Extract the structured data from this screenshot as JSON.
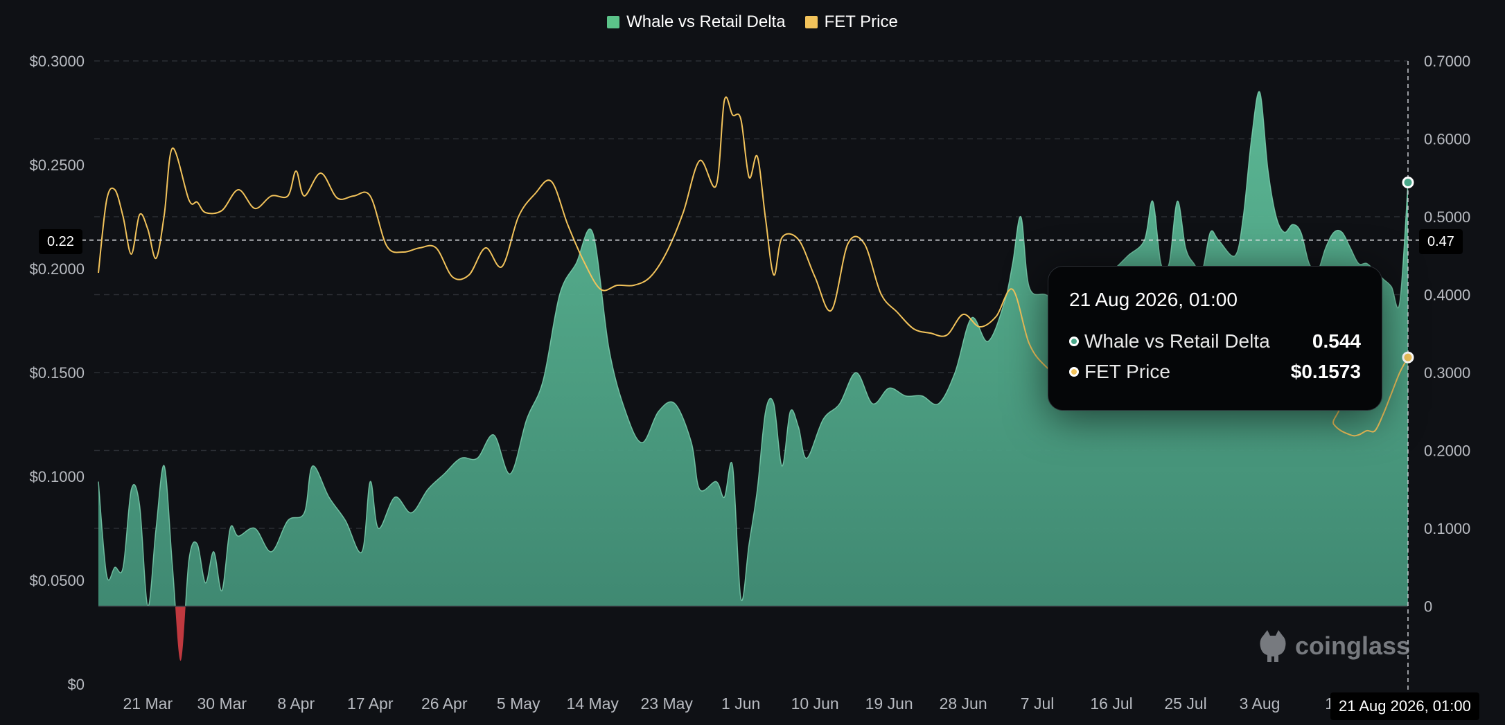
{
  "legend": [
    {
      "name": "Whale vs Retail Delta",
      "color": "#5bc389"
    },
    {
      "name": "FET Price",
      "color": "#f2c35b"
    }
  ],
  "tooltip": {
    "title": "21 Aug 2026, 01:00",
    "rows": [
      {
        "label": "Whale vs Retail Delta",
        "value": "0.544",
        "dot_color": "#4aa88a"
      },
      {
        "label": "FET Price",
        "value": "$0.1573",
        "dot_color": "#f2c35b"
      }
    ]
  },
  "crosshair": {
    "left_label": "0.22",
    "right_label": "0.47",
    "x_label": "21 Aug 2026, 01:00"
  },
  "watermark": "coinglass",
  "chart_data": {
    "type": "area",
    "x_tick_labels": [
      "21 Mar",
      "30 Mar",
      "8 Apr",
      "17 Apr",
      "26 Apr",
      "5 May",
      "14 May",
      "23 May",
      "1 Jun",
      "10 Jun",
      "19 Jun",
      "28 Jun",
      "7 Jul",
      "16 Jul",
      "25 Jul",
      "3 Aug",
      "12",
      "21 Aug 2026, 01:00"
    ],
    "x_range": [
      "2026-03-15",
      "2026-08-21"
    ],
    "y_left": {
      "ticks": [
        "$0.3000",
        "$0.2500",
        "$0.2000",
        "$0.1500",
        "$0.1000",
        "$0.0500",
        "$0"
      ],
      "lim": [
        0,
        0.3
      ]
    },
    "y_right": {
      "ticks": [
        "0.7000",
        "0.6000",
        "0.5000",
        "0.4000",
        "0.3000",
        "0.2000",
        "0.1000",
        "0"
      ],
      "lim": [
        -0.1,
        0.7
      ]
    },
    "grid": true,
    "legend_position": "top-center",
    "series": [
      {
        "name": "Whale vs Retail Delta",
        "axis": "right",
        "color": "#5fbf9a",
        "negative_color": "#c0393f",
        "x": [
          "2026-03-15",
          "2026-03-16",
          "2026-03-17",
          "2026-03-18",
          "2026-03-19",
          "2026-03-20",
          "2026-03-21",
          "2026-03-22",
          "2026-03-23",
          "2026-03-24",
          "2026-03-25",
          "2026-03-26",
          "2026-03-27",
          "2026-03-28",
          "2026-03-29",
          "2026-03-30",
          "2026-03-31",
          "2026-04-01",
          "2026-04-03",
          "2026-04-05",
          "2026-04-07",
          "2026-04-09",
          "2026-04-10",
          "2026-04-12",
          "2026-04-14",
          "2026-04-16",
          "2026-04-17",
          "2026-04-18",
          "2026-04-20",
          "2026-04-22",
          "2026-04-24",
          "2026-04-26",
          "2026-04-28",
          "2026-04-30",
          "2026-05-02",
          "2026-05-04",
          "2026-05-06",
          "2026-05-08",
          "2026-05-10",
          "2026-05-12",
          "2026-05-14",
          "2026-05-16",
          "2026-05-18",
          "2026-05-20",
          "2026-05-22",
          "2026-05-24",
          "2026-05-26",
          "2026-05-27",
          "2026-05-29",
          "2026-05-30",
          "2026-05-31",
          "2026-06-01",
          "2026-06-02",
          "2026-06-03",
          "2026-06-04",
          "2026-06-05",
          "2026-06-06",
          "2026-06-07",
          "2026-06-08",
          "2026-06-09",
          "2026-06-11",
          "2026-06-13",
          "2026-06-15",
          "2026-06-17",
          "2026-06-19",
          "2026-06-21",
          "2026-06-23",
          "2026-06-25",
          "2026-06-27",
          "2026-06-29",
          "2026-07-01",
          "2026-07-03",
          "2026-07-04",
          "2026-07-05",
          "2026-07-06",
          "2026-07-08",
          "2026-07-10",
          "2026-07-12",
          "2026-07-14",
          "2026-07-16",
          "2026-07-18",
          "2026-07-20",
          "2026-07-21",
          "2026-07-22",
          "2026-07-23",
          "2026-07-24",
          "2026-07-25",
          "2026-07-26",
          "2026-07-27",
          "2026-07-28",
          "2026-07-29",
          "2026-07-31",
          "2026-08-01",
          "2026-08-02",
          "2026-08-03",
          "2026-08-04",
          "2026-08-05",
          "2026-08-06",
          "2026-08-07",
          "2026-08-08",
          "2026-08-09",
          "2026-08-10",
          "2026-08-11",
          "2026-08-12",
          "2026-08-13",
          "2026-08-14",
          "2026-08-15",
          "2026-08-16",
          "2026-08-17",
          "2026-08-18",
          "2026-08-19",
          "2026-08-20",
          "2026-08-21"
        ],
        "values": [
          0.16,
          0.04,
          0.05,
          0.05,
          0.15,
          0.13,
          0.0,
          0.1,
          0.18,
          0.05,
          -0.07,
          0.06,
          0.08,
          0.03,
          0.07,
          0.02,
          0.1,
          0.09,
          0.1,
          0.07,
          0.11,
          0.12,
          0.18,
          0.14,
          0.11,
          0.07,
          0.16,
          0.1,
          0.14,
          0.12,
          0.15,
          0.17,
          0.19,
          0.19,
          0.22,
          0.17,
          0.24,
          0.29,
          0.4,
          0.44,
          0.48,
          0.33,
          0.25,
          0.21,
          0.25,
          0.26,
          0.21,
          0.15,
          0.16,
          0.14,
          0.18,
          0.01,
          0.08,
          0.15,
          0.25,
          0.26,
          0.18,
          0.25,
          0.23,
          0.19,
          0.24,
          0.26,
          0.3,
          0.26,
          0.28,
          0.27,
          0.27,
          0.26,
          0.3,
          0.37,
          0.34,
          0.39,
          0.44,
          0.5,
          0.41,
          0.4,
          0.39,
          0.4,
          0.42,
          0.43,
          0.45,
          0.47,
          0.52,
          0.44,
          0.44,
          0.52,
          0.46,
          0.44,
          0.43,
          0.48,
          0.47,
          0.45,
          0.5,
          0.6,
          0.66,
          0.56,
          0.5,
          0.48,
          0.49,
          0.48,
          0.44,
          0.43,
          0.46,
          0.48,
          0.48,
          0.46,
          0.44,
          0.44,
          0.43,
          0.42,
          0.41,
          0.39,
          0.544
        ]
      },
      {
        "name": "FET Price",
        "axis": "left",
        "color": "#f2c35b",
        "x": [
          "2026-03-15",
          "2026-03-16",
          "2026-03-17",
          "2026-03-18",
          "2026-03-19",
          "2026-03-20",
          "2026-03-21",
          "2026-03-22",
          "2026-03-23",
          "2026-03-24",
          "2026-03-26",
          "2026-03-27",
          "2026-03-28",
          "2026-03-30",
          "2026-04-01",
          "2026-04-03",
          "2026-04-05",
          "2026-04-07",
          "2026-04-08",
          "2026-04-09",
          "2026-04-11",
          "2026-04-13",
          "2026-04-15",
          "2026-04-17",
          "2026-04-19",
          "2026-04-21",
          "2026-04-23",
          "2026-04-25",
          "2026-04-27",
          "2026-04-29",
          "2026-05-01",
          "2026-05-03",
          "2026-05-05",
          "2026-05-07",
          "2026-05-09",
          "2026-05-11",
          "2026-05-13",
          "2026-05-15",
          "2026-05-17",
          "2026-05-19",
          "2026-05-21",
          "2026-05-23",
          "2026-05-25",
          "2026-05-27",
          "2026-05-29",
          "2026-05-30",
          "2026-05-31",
          "2026-06-01",
          "2026-06-02",
          "2026-06-03",
          "2026-06-04",
          "2026-06-05",
          "2026-06-06",
          "2026-06-08",
          "2026-06-10",
          "2026-06-12",
          "2026-06-14",
          "2026-06-16",
          "2026-06-18",
          "2026-06-20",
          "2026-06-22",
          "2026-06-24",
          "2026-06-26",
          "2026-06-28",
          "2026-06-30",
          "2026-07-02",
          "2026-07-04",
          "2026-07-06",
          "2026-07-08",
          "2026-07-10",
          "2026-07-12",
          "2026-08-10",
          "2026-08-12",
          "2026-08-14",
          "2026-08-15",
          "2026-08-16",
          "2026-08-17",
          "2026-08-18",
          "2026-08-19",
          "2026-08-20",
          "2026-08-21"
        ],
        "values": [
          0.198,
          0.233,
          0.238,
          0.225,
          0.207,
          0.226,
          0.219,
          0.205,
          0.226,
          0.258,
          0.233,
          0.232,
          0.227,
          0.228,
          0.238,
          0.229,
          0.235,
          0.235,
          0.247,
          0.235,
          0.246,
          0.234,
          0.235,
          0.235,
          0.211,
          0.208,
          0.21,
          0.21,
          0.196,
          0.197,
          0.21,
          0.201,
          0.225,
          0.236,
          0.242,
          0.221,
          0.203,
          0.19,
          0.192,
          0.192,
          0.196,
          0.208,
          0.227,
          0.252,
          0.24,
          0.281,
          0.274,
          0.272,
          0.244,
          0.254,
          0.224,
          0.197,
          0.215,
          0.214,
          0.196,
          0.18,
          0.212,
          0.212,
          0.188,
          0.179,
          0.171,
          0.169,
          0.168,
          0.178,
          0.172,
          0.177,
          0.19,
          0.164,
          0.153,
          0.148,
          0.147,
          0.14,
          0.125,
          0.12,
          0.12,
          0.122,
          0.122,
          0.13,
          0.14,
          0.15,
          0.1573
        ]
      }
    ]
  }
}
